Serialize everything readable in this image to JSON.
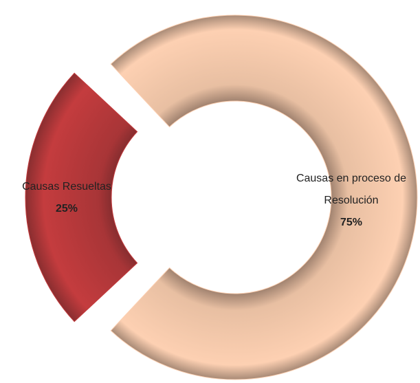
{
  "chart_data": {
    "type": "donut",
    "categories": [
      "Causas Resueltas",
      "Causas en proceso de Resolución"
    ],
    "values": [
      25,
      75
    ],
    "value_labels": [
      "25%",
      "75%"
    ],
    "colors": [
      "#c43c3e",
      "#fdd0b2"
    ]
  }
}
